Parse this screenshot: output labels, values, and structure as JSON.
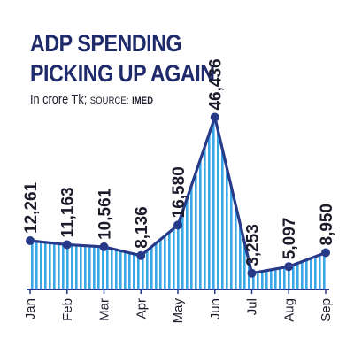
{
  "header": {
    "title_line1": "ADP SPENDING",
    "title_line2": "PICKING UP AGAIN",
    "unit_text": "In crore Tk;",
    "source_label": "SOURCE:",
    "source_name": "IMED"
  },
  "colors": {
    "title": "#1f2a6b",
    "line": "#273a8a",
    "fill_stripe": "#3aa7e6",
    "marker": "#273a8a"
  },
  "chart_data": {
    "type": "area",
    "categories": [
      "Jan",
      "Feb",
      "Mar",
      "Apr",
      "May",
      "Jun",
      "Jul",
      "Aug",
      "Sep"
    ],
    "values": [
      12261,
      11163,
      10561,
      8136,
      16580,
      46436,
      3253,
      5097,
      8950
    ],
    "data_labels": [
      "12,261",
      "11,163",
      "10,561",
      "8,136",
      "16,580",
      "46,436",
      "3,253",
      "5,097",
      "8,950"
    ],
    "title": "ADP SPENDING PICKING UP AGAIN",
    "ylabel": "In crore Tk",
    "ylim": [
      0,
      50000
    ],
    "grid": false,
    "legend": "none"
  }
}
